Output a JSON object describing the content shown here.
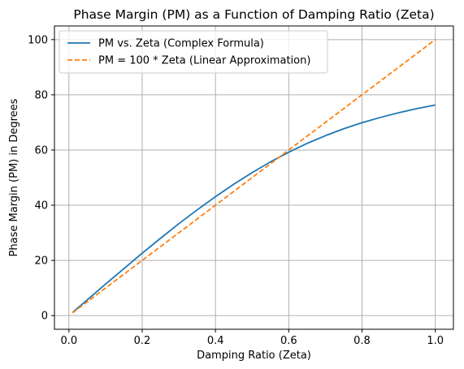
{
  "chart_data": {
    "type": "line",
    "title": "Phase Margin (PM) as a Function of Damping Ratio (Zeta)",
    "xlabel": "Damping Ratio (Zeta)",
    "ylabel": "Phase Margin (PM) in Degrees",
    "xlim": [
      -0.0395,
      1.0495
    ],
    "ylim": [
      -4.95,
      104.95
    ],
    "xticks": [
      0.0,
      0.2,
      0.4,
      0.6,
      0.8,
      1.0
    ],
    "xtick_labels": [
      "0.0",
      "0.2",
      "0.4",
      "0.6",
      "0.8",
      "1.0"
    ],
    "yticks": [
      0,
      20,
      40,
      60,
      80,
      100
    ],
    "ytick_labels": [
      "0",
      "20",
      "40",
      "60",
      "80",
      "100"
    ],
    "grid": true,
    "legend_position": "top-left",
    "series": [
      {
        "name": "PM vs. Zeta (Complex Formula)",
        "color": "#1f77b4",
        "linestyle": "solid",
        "x": [
          0.01,
          0.05,
          0.1,
          0.15,
          0.2,
          0.25,
          0.3,
          0.35,
          0.4,
          0.45,
          0.5,
          0.55,
          0.6,
          0.65,
          0.7,
          0.75,
          0.8,
          0.85,
          0.9,
          0.95,
          1.0
        ],
        "y": [
          1.15,
          5.7,
          11.4,
          17.0,
          22.6,
          28.0,
          33.3,
          38.3,
          43.1,
          47.6,
          51.8,
          55.7,
          59.2,
          62.4,
          65.2,
          67.7,
          69.9,
          71.8,
          73.5,
          75.0,
          76.3
        ]
      },
      {
        "name": "PM = 100 * Zeta (Linear Approximation)",
        "color": "#ff7f0e",
        "linestyle": "dashed",
        "x": [
          0.01,
          1.0
        ],
        "y": [
          1,
          100
        ]
      }
    ]
  }
}
